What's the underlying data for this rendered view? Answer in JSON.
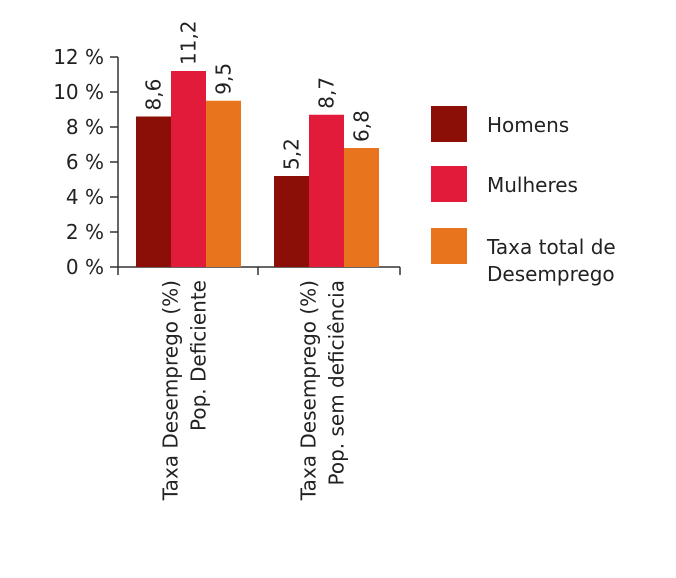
{
  "chart_data": {
    "type": "bar",
    "categories": [
      [
        "Taxa Desemprego (%)",
        "Pop. Deficiente"
      ],
      [
        "Taxa Desemprego (%)",
        "Pop. sem deficiência"
      ]
    ],
    "series": [
      {
        "name": "Homens",
        "color": "#8B0F06",
        "values": [
          8.6,
          5.2
        ],
        "labels": [
          "8,6",
          "5,2"
        ]
      },
      {
        "name": "Mulheres",
        "color": "#E31B3B",
        "values": [
          11.2,
          8.7
        ],
        "labels": [
          "11,2",
          "8,7"
        ]
      },
      {
        "name": "Taxa total de Desemprego",
        "legend_lines": [
          "Taxa total de",
          "Desemprego"
        ],
        "color": "#E8751E",
        "values": [
          9.5,
          6.8
        ],
        "labels": [
          "9,5",
          "6,8"
        ]
      }
    ],
    "y_ticks": [
      0,
      2,
      4,
      6,
      8,
      10,
      12
    ],
    "y_tick_labels": [
      "0 %",
      "2 %",
      "4 %",
      "6 %",
      "8 %",
      "10 %",
      "12 %"
    ],
    "ylim": [
      0,
      12
    ],
    "grid": false,
    "legend_position": "right"
  }
}
